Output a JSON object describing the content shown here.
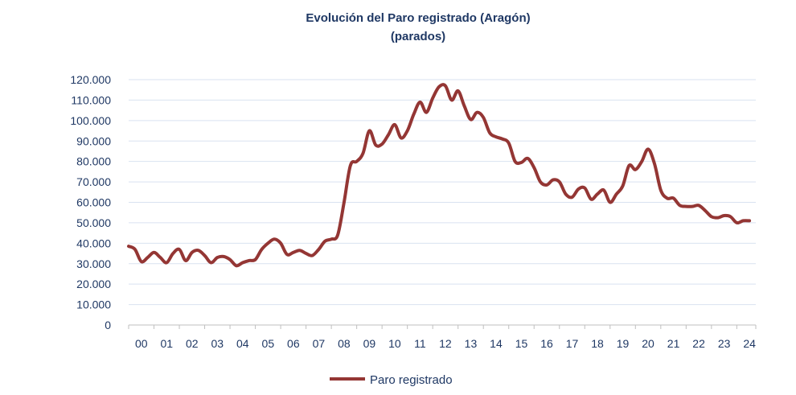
{
  "chart_data": {
    "type": "line",
    "title": "Evolución del Paro registrado (Aragón)",
    "subtitle": "(parados)",
    "xlabel": "",
    "ylabel": "",
    "x_tick_labels": [
      "00",
      "01",
      "02",
      "03",
      "04",
      "05",
      "06",
      "07",
      "08",
      "09",
      "10",
      "11",
      "12",
      "13",
      "14",
      "15",
      "16",
      "17",
      "18",
      "19",
      "20",
      "21",
      "22",
      "23",
      "24"
    ],
    "y_tick_labels": [
      "0",
      "10.000",
      "20.000",
      "30.000",
      "40.000",
      "50.000",
      "60.000",
      "70.000",
      "80.000",
      "90.000",
      "100.000",
      "110.000",
      "120.000"
    ],
    "ylim": [
      0,
      120000
    ],
    "xlim": [
      2000,
      2024.75
    ],
    "grid": true,
    "legend_position": "bottom",
    "colors": {
      "line": "#943634",
      "grid": "#d9e2f0",
      "axis": "#bfbfbf",
      "text": "#1f3864"
    },
    "series": [
      {
        "name": "Paro registrado",
        "x": [
          2000.0,
          2000.25,
          2000.5,
          2000.75,
          2001.0,
          2001.25,
          2001.5,
          2001.75,
          2002.0,
          2002.25,
          2002.5,
          2002.75,
          2003.0,
          2003.25,
          2003.5,
          2003.75,
          2004.0,
          2004.25,
          2004.5,
          2004.75,
          2005.0,
          2005.25,
          2005.5,
          2005.75,
          2006.0,
          2006.25,
          2006.5,
          2006.75,
          2007.0,
          2007.25,
          2007.5,
          2007.75,
          2008.0,
          2008.25,
          2008.5,
          2008.75,
          2009.0,
          2009.25,
          2009.5,
          2009.75,
          2010.0,
          2010.25,
          2010.5,
          2010.75,
          2011.0,
          2011.25,
          2011.5,
          2011.75,
          2012.0,
          2012.25,
          2012.5,
          2012.75,
          2013.0,
          2013.25,
          2013.5,
          2013.75,
          2014.0,
          2014.25,
          2014.5,
          2014.75,
          2015.0,
          2015.25,
          2015.5,
          2015.75,
          2016.0,
          2016.25,
          2016.5,
          2016.75,
          2017.0,
          2017.25,
          2017.5,
          2017.75,
          2018.0,
          2018.25,
          2018.5,
          2018.75,
          2019.0,
          2019.25,
          2019.5,
          2019.75,
          2020.0,
          2020.25,
          2020.5,
          2020.75,
          2021.0,
          2021.25,
          2021.5,
          2021.75,
          2022.0,
          2022.25,
          2022.5,
          2022.75,
          2023.0,
          2023.25,
          2023.5,
          2023.75,
          2024.0,
          2024.25,
          2024.5
        ],
        "y": [
          38500,
          37000,
          31000,
          33000,
          35500,
          33000,
          30500,
          35000,
          37000,
          31500,
          35500,
          36500,
          34000,
          30500,
          33000,
          33500,
          32000,
          29000,
          30500,
          31500,
          32000,
          37000,
          40000,
          42000,
          40000,
          34500,
          35500,
          36500,
          35000,
          34000,
          37000,
          41000,
          42000,
          44000,
          60000,
          78000,
          80000,
          84000,
          95000,
          88000,
          88500,
          93000,
          98000,
          91500,
          95000,
          103000,
          109000,
          104000,
          111000,
          116500,
          117000,
          110000,
          114500,
          107000,
          100500,
          104000,
          101500,
          94000,
          92000,
          91000,
          89000,
          80000,
          79500,
          81500,
          77000,
          70000,
          68500,
          71000,
          70000,
          64000,
          62500,
          66500,
          67000,
          61500,
          64000,
          66000,
          60000,
          64000,
          68000,
          78000,
          76000,
          80000,
          86000,
          79000,
          66000,
          62000,
          62000,
          58500,
          58000,
          58000,
          58500,
          56000,
          53000,
          52500,
          53500,
          53000,
          50000,
          51000,
          51000
        ]
      }
    ]
  }
}
